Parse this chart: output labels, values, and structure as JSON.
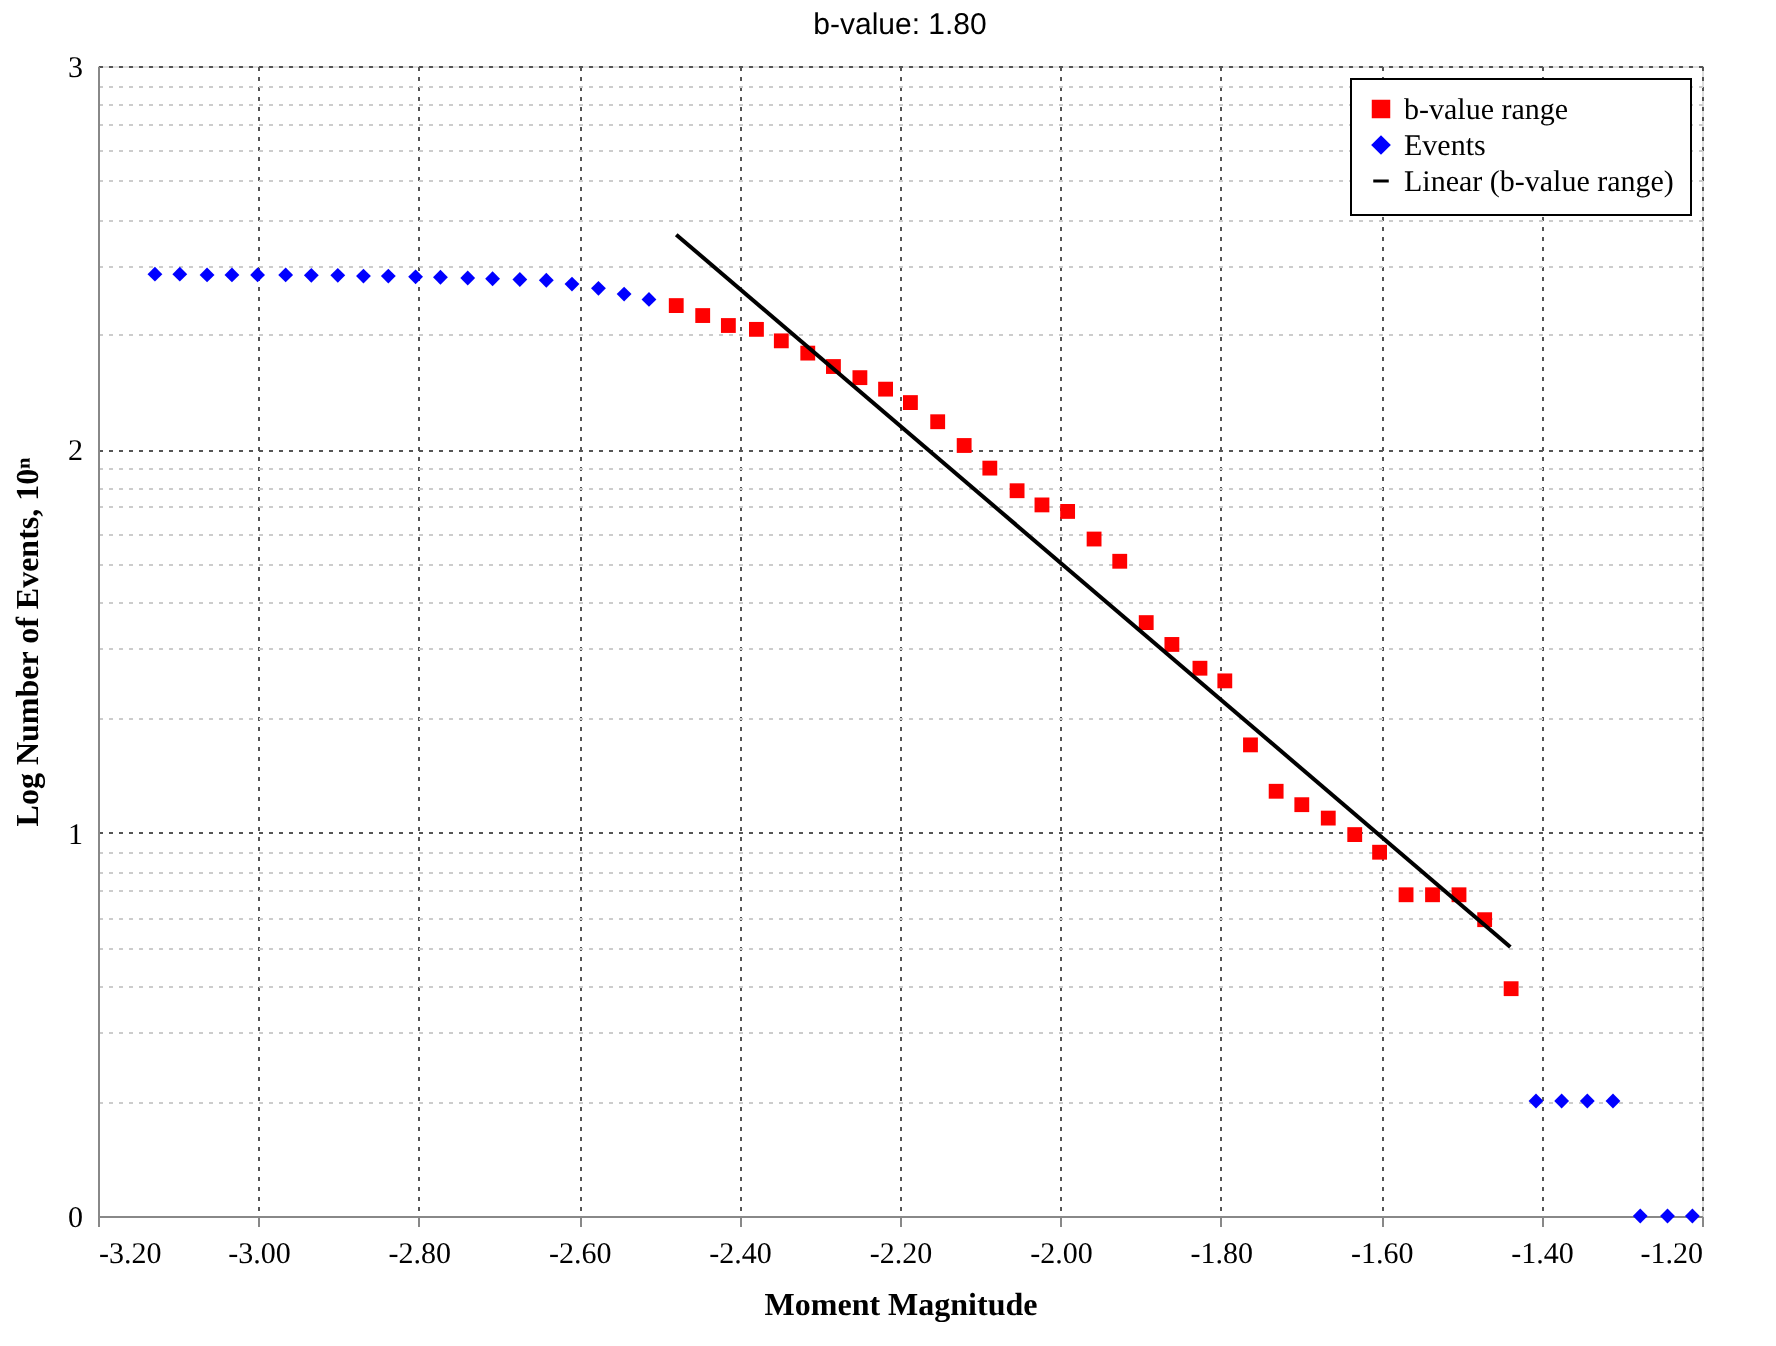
{
  "chart_data": {
    "type": "scatter",
    "title": "b-value: 1.80",
    "xlabel": "Moment Magnitude",
    "ylabel": "Log Number of Events, 10ⁿ",
    "xlim": [
      -3.2,
      -1.2
    ],
    "xticks": [
      {
        "value": -3.2,
        "label": "-3.20"
      },
      {
        "value": -3.0,
        "label": "-3.00"
      },
      {
        "value": -2.8,
        "label": "-2.80"
      },
      {
        "value": -2.6,
        "label": "-2.60"
      },
      {
        "value": -2.4,
        "label": "-2.40"
      },
      {
        "value": -2.2,
        "label": "-2.20"
      },
      {
        "value": -2.0,
        "label": "-2.00"
      },
      {
        "value": -1.8,
        "label": "-1.80"
      },
      {
        "value": -1.6,
        "label": "-1.60"
      },
      {
        "value": -1.4,
        "label": "-1.40"
      },
      {
        "value": -1.2,
        "label": "-1.20"
      }
    ],
    "ylim": [
      0,
      3
    ],
    "yticks": [
      0,
      {
        "value": 0.3,
        "label": null
      },
      {
        "value": 0.48,
        "label": null
      },
      {
        "value": 0.6,
        "label": null
      },
      {
        "value": 0.7,
        "label": null
      },
      {
        "value": 0.78,
        "label": null
      },
      {
        "value": 0.85,
        "label": null
      },
      {
        "value": 0.9,
        "label": null
      },
      {
        "value": 0.95,
        "label": null
      },
      1,
      {
        "value": 1.3,
        "label": null
      },
      {
        "value": 1.48,
        "label": null
      },
      {
        "value": 1.6,
        "label": null
      },
      {
        "value": 1.7,
        "label": null
      },
      {
        "value": 1.78,
        "label": null
      },
      {
        "value": 1.85,
        "label": null
      },
      {
        "value": 1.9,
        "label": null
      },
      {
        "value": 1.95,
        "label": null
      },
      2,
      {
        "value": 2.3,
        "label": null
      },
      {
        "value": 2.48,
        "label": null
      },
      {
        "value": 2.6,
        "label": null
      },
      {
        "value": 2.7,
        "label": null
      },
      {
        "value": 2.78,
        "label": null
      },
      {
        "value": 2.85,
        "label": null
      },
      {
        "value": 2.9,
        "label": null
      },
      {
        "value": 2.95,
        "label": null
      },
      3
    ],
    "grid": true,
    "legend": "top right",
    "series": [
      {
        "name": "b-value range",
        "type": "scatter",
        "marker": "square",
        "color": "#ff0000",
        "x": [
          -2.479,
          -2.446,
          -2.414,
          -2.379,
          -2.348,
          -2.315,
          -2.283,
          -2.25,
          -2.218,
          -2.187,
          -2.153,
          -2.12,
          -2.088,
          -2.054,
          -2.023,
          -1.991,
          -1.958,
          -1.926,
          -1.893,
          -1.861,
          -1.826,
          -1.795,
          -1.763,
          -1.731,
          -1.699,
          -1.666,
          -1.633,
          -1.602,
          -1.569,
          -1.536,
          -1.503,
          -1.471,
          -1.438
        ],
        "values": [
          2.375,
          2.349,
          2.323,
          2.313,
          2.283,
          2.251,
          2.216,
          2.187,
          2.157,
          2.122,
          2.072,
          2.01,
          1.951,
          1.892,
          1.855,
          1.838,
          1.766,
          1.708,
          1.548,
          1.491,
          1.429,
          1.396,
          1.229,
          1.108,
          1.073,
          1.038,
          0.995,
          0.949,
          0.838,
          0.838,
          0.838,
          0.773,
          0.593
        ]
      },
      {
        "name": "Events",
        "type": "scatter",
        "marker": "diamond",
        "color": "#0000ff",
        "x": [
          -3.129,
          -3.098,
          -3.064,
          -3.033,
          -3.001,
          -2.966,
          -2.934,
          -2.901,
          -2.869,
          -2.838,
          -2.804,
          -2.773,
          -2.739,
          -2.708,
          -2.674,
          -2.641,
          -2.609,
          -2.576,
          -2.544,
          -2.513,
          -1.407,
          -1.375,
          -1.343,
          -1.311,
          -1.277,
          -1.243,
          -1.212
        ],
        "values": [
          2.457,
          2.457,
          2.455,
          2.455,
          2.455,
          2.455,
          2.454,
          2.454,
          2.452,
          2.452,
          2.45,
          2.449,
          2.447,
          2.445,
          2.443,
          2.441,
          2.431,
          2.42,
          2.405,
          2.391,
          0.3,
          0.3,
          0.3,
          0.3,
          0,
          0,
          0
        ]
      },
      {
        "name": "Linear (b-value range)",
        "type": "line",
        "line_style": "solid",
        "color": "#000000",
        "x": [
          -2.479,
          -1.439
        ],
        "values": [
          2.56,
          0.702
        ]
      }
    ]
  }
}
